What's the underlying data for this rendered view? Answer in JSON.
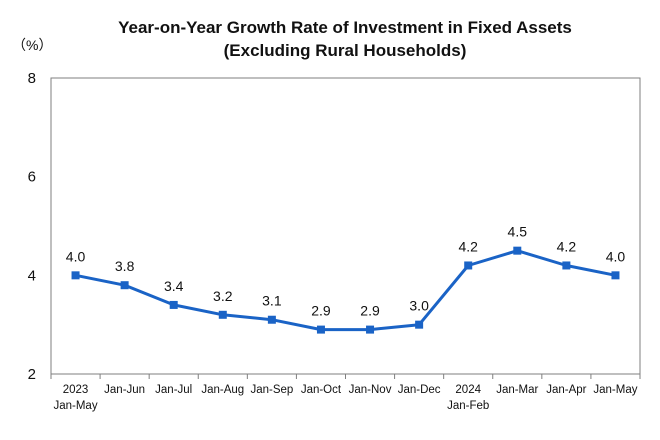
{
  "chart_data": {
    "type": "line",
    "title_line1": "Year-on-Year Growth Rate of Investment in Fixed Assets",
    "title_line2": "(Excluding Rural Households)",
    "ylabel": "（%）",
    "ylim": [
      2,
      8
    ],
    "yticks": [
      "2",
      "4",
      "6",
      "8"
    ],
    "grid": false,
    "categories": [
      [
        "2023",
        "Jan-May"
      ],
      [
        "Jan-Jun"
      ],
      [
        "Jan-Jul"
      ],
      [
        "Jan-Aug"
      ],
      [
        "Jan-Sep"
      ],
      [
        "Jan-Oct"
      ],
      [
        "Jan-Nov"
      ],
      [
        "Jan-Dec"
      ],
      [
        "2024",
        "Jan-Feb"
      ],
      [
        "Jan-Mar"
      ],
      [
        "Jan-Apr"
      ],
      [
        "Jan-May"
      ]
    ],
    "series": [
      {
        "name": "Year-on-Year Growth Rate",
        "values": [
          4.0,
          3.8,
          3.4,
          3.2,
          3.1,
          2.9,
          2.9,
          3.0,
          4.2,
          4.5,
          4.2,
          4.0
        ],
        "labels": [
          "4.0",
          "3.8",
          "3.4",
          "3.2",
          "3.1",
          "2.9",
          "2.9",
          "3.0",
          "4.2",
          "4.5",
          "4.2",
          "4.0"
        ]
      }
    ],
    "colors": {
      "line": "#1a63c6",
      "axis": "#7f7f7f"
    }
  }
}
